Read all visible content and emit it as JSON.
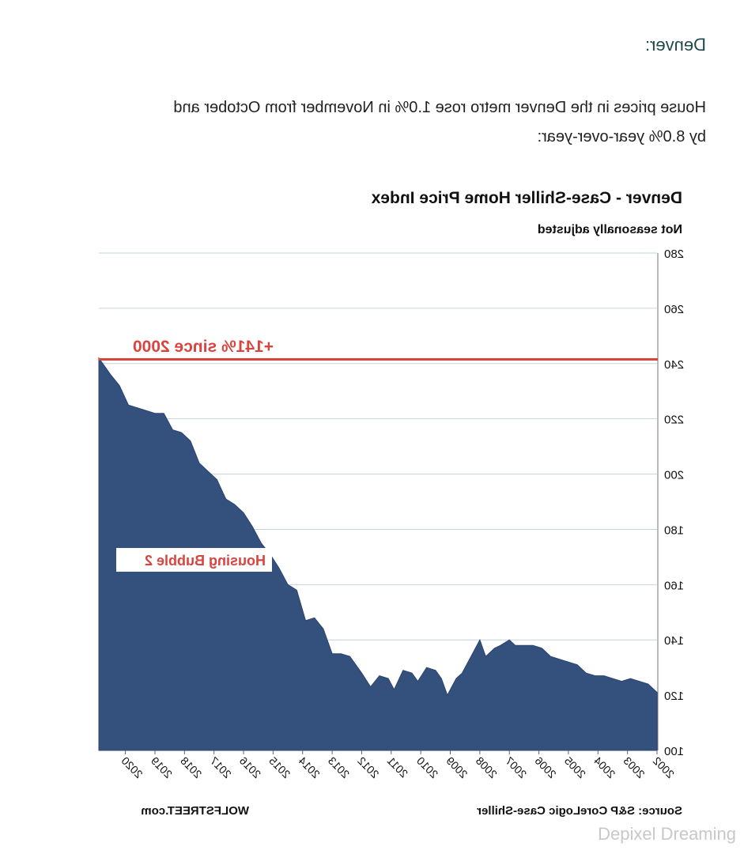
{
  "article": {
    "heading": "Denver:",
    "paragraph_line1": "House prices in the Denver metro rose 1.0% in November from October and",
    "paragraph_line2": "by 8.0% year-over-year:"
  },
  "watermark": "Depixel Dreaming",
  "colors": {
    "area": "#34507d",
    "ref_line": "#d9443e",
    "grid": "#c6d4e0",
    "heading": "#1f4a4a"
  },
  "chart_data": {
    "type": "area",
    "title": "Denver - Case-Shiller Home Price Index",
    "subtitle": "Not seasonally adjusted",
    "source": "Source: S&P CoreLogic Case-Shiller",
    "credit": "WOLFSTREET.com",
    "ylim": [
      100,
      280
    ],
    "yticks": [
      "100",
      "120",
      "140",
      "160",
      "180",
      "200",
      "220",
      "240",
      "260",
      "280"
    ],
    "xticks": [
      "2002",
      "2003",
      "2004",
      "2005",
      "2006",
      "2007",
      "2008",
      "2009",
      "2010",
      "2011",
      "2012",
      "2013",
      "2014",
      "2015",
      "2016",
      "2017",
      "2018",
      "2019",
      "2020"
    ],
    "grid": true,
    "x_start": 2002.0,
    "x_end": 2020.9,
    "series": [
      {
        "x": [
          2002.0,
          2002.3,
          2002.6,
          2002.9,
          2003.2,
          2003.5,
          2003.8,
          2004.1,
          2004.4,
          2004.7,
          2005.0,
          2005.3,
          2005.6,
          2005.9,
          2006.2,
          2006.5,
          2006.8,
          2007.0,
          2007.3,
          2007.5,
          2007.8,
          2008.0,
          2008.3,
          2008.6,
          2008.8,
          2009.1,
          2009.3,
          2009.5,
          2009.8,
          2010.1,
          2010.3,
          2010.6,
          2010.9,
          2011.1,
          2011.4,
          2011.7,
          2012.0,
          2012.4,
          2012.7,
          2013.0,
          2013.3,
          2013.6,
          2013.9,
          2014.2,
          2014.5,
          2014.8,
          2015.1,
          2015.4,
          2015.7,
          2016.0,
          2016.3,
          2016.6,
          2016.9,
          2017.2,
          2017.5,
          2017.8,
          2018.1,
          2018.4,
          2018.7,
          2019.0,
          2019.3,
          2019.6,
          2019.9,
          2020.2,
          2020.5,
          2020.9
        ],
        "y": [
          121,
          124,
          125,
          126,
          125,
          126,
          127,
          127,
          128,
          131,
          132,
          133,
          134,
          137,
          138,
          138,
          138,
          140,
          138,
          137,
          134,
          140,
          134,
          128,
          126,
          120,
          126,
          129,
          130,
          125,
          128,
          129,
          122,
          126,
          127,
          123,
          128,
          134,
          135,
          135,
          144,
          148,
          147,
          158,
          160,
          166,
          171,
          175,
          181,
          186,
          189,
          191,
          198,
          201,
          204,
          212,
          215,
          216,
          222,
          222,
          223,
          224,
          225,
          232,
          236,
          242
        ]
      }
    ],
    "annotations": [
      "+141% since 2000",
      "Housing Bubble 2"
    ],
    "ref_line_y": 241.5
  }
}
